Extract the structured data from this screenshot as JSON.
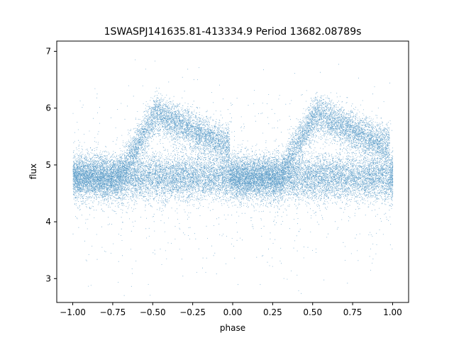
{
  "chart_data": {
    "type": "scatter",
    "title": "1SWASPJ141635.81-413334.9 Period 13682.08789s",
    "xlabel": "phase",
    "ylabel": "flux",
    "xlim": [
      -1.1,
      1.1
    ],
    "ylim": [
      2.58,
      7.18
    ],
    "x_ticks": [
      -1.0,
      -0.75,
      -0.5,
      -0.25,
      0.0,
      0.25,
      0.5,
      0.75,
      1.0
    ],
    "x_tick_labels": [
      "−1.00",
      "−0.75",
      "−0.50",
      "−0.25",
      "0.00",
      "0.25",
      "0.50",
      "0.75",
      "1.00"
    ],
    "y_ticks": [
      3,
      4,
      5,
      6,
      7
    ],
    "y_tick_labels": [
      "3",
      "4",
      "5",
      "6",
      "7"
    ],
    "grid": false,
    "point_color": "#1f77b4",
    "profile": {
      "baseline_flux": 4.78,
      "baseline_spread": 0.2,
      "peak_phase": 0.52,
      "peak_flux": 5.9,
      "rise_start_phase": 0.3,
      "decline_end_phase": 0.98,
      "decline_end_flux": 5.3
    },
    "approx_points": 30000
  }
}
